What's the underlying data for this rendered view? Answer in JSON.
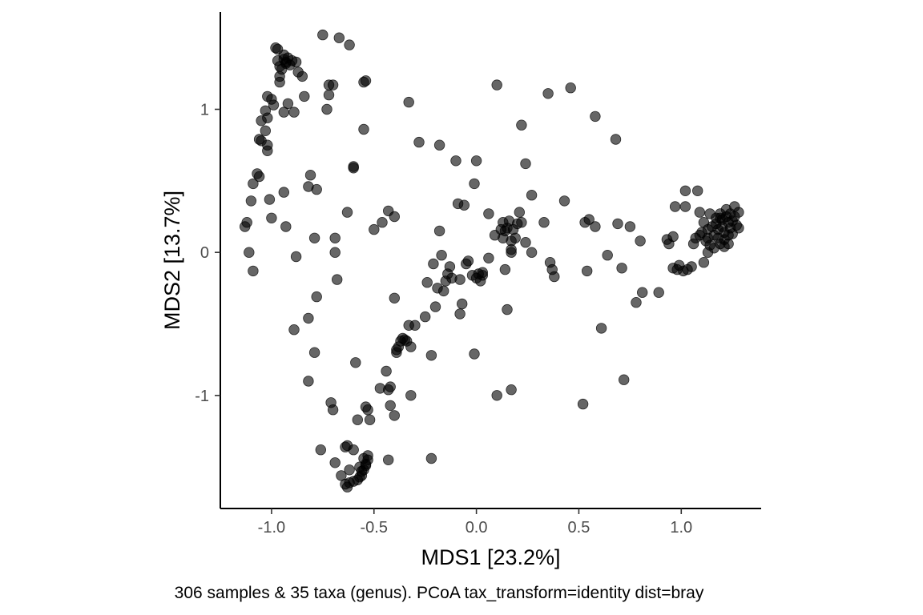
{
  "chart_data": {
    "type": "scatter",
    "title": "",
    "xlabel": "MDS1 [23.2%]",
    "ylabel": "MDS2 [13.7%]",
    "caption": "306 samples & 35 taxa (genus). PCoA tax_transform=identity dist=bray",
    "xlim": [
      -1.25,
      1.39
    ],
    "ylim": [
      -1.79,
      1.68
    ],
    "x_ticks": [
      -1.0,
      -0.5,
      0.0,
      0.5,
      1.0
    ],
    "x_tick_labels": [
      "-1.0",
      "-0.5",
      "0.0",
      "0.5",
      "1.0"
    ],
    "y_ticks": [
      -1,
      0,
      1
    ],
    "y_tick_labels": [
      "-1",
      "0",
      "1"
    ],
    "grid": false,
    "legend": "none",
    "point_color": "#000000",
    "point_opacity": 0.6,
    "series": [
      {
        "name": "samples",
        "points": [
          [
            -1.13,
            0.18
          ],
          [
            -1.12,
            0.21
          ],
          [
            -1.11,
            0.0
          ],
          [
            -1.09,
            -0.13
          ],
          [
            -1.1,
            0.36
          ],
          [
            -1.09,
            0.48
          ],
          [
            -1.07,
            0.55
          ],
          [
            -1.06,
            0.53
          ],
          [
            -1.06,
            0.79
          ],
          [
            -1.05,
            0.78
          ],
          [
            -1.05,
            0.92
          ],
          [
            -1.03,
            0.99
          ],
          [
            -1.02,
            0.94
          ],
          [
            -1.03,
            0.85
          ],
          [
            -1.02,
            0.75
          ],
          [
            -1.02,
            0.71
          ],
          [
            -1.02,
            1.09
          ],
          [
            -1.0,
            1.07
          ],
          [
            -0.99,
            1.03
          ],
          [
            -1.01,
            0.37
          ],
          [
            -1.0,
            0.24
          ],
          [
            -0.98,
            1.43
          ],
          [
            -0.97,
            1.42
          ],
          [
            -0.97,
            1.34
          ],
          [
            -0.96,
            1.3
          ],
          [
            -0.95,
            1.28
          ],
          [
            -0.96,
            1.23
          ],
          [
            -0.96,
            1.19
          ],
          [
            -0.94,
            1.38
          ],
          [
            -0.94,
            1.35
          ],
          [
            -0.93,
            1.33
          ],
          [
            -0.93,
            1.32
          ],
          [
            -0.92,
            1.36
          ],
          [
            -0.91,
            1.31
          ],
          [
            -0.9,
            1.34
          ],
          [
            -0.88,
            1.33
          ],
          [
            -0.87,
            1.26
          ],
          [
            -0.85,
            1.23
          ],
          [
            -0.92,
            1.04
          ],
          [
            -0.94,
            0.98
          ],
          [
            -0.89,
            0.98
          ],
          [
            -0.84,
            1.09
          ],
          [
            -0.94,
            0.42
          ],
          [
            -0.93,
            0.18
          ],
          [
            -0.81,
            0.54
          ],
          [
            -0.82,
            0.46
          ],
          [
            -0.78,
            0.44
          ],
          [
            -0.88,
            -0.03
          ],
          [
            -0.79,
            0.1
          ],
          [
            -0.78,
            -0.31
          ],
          [
            -0.79,
            -0.7
          ],
          [
            -0.82,
            -0.46
          ],
          [
            -0.89,
            -0.54
          ],
          [
            -0.82,
            -0.9
          ],
          [
            -0.75,
            1.52
          ],
          [
            -0.76,
            -1.38
          ],
          [
            -0.72,
            1.17
          ],
          [
            -0.72,
            1.1
          ],
          [
            -0.73,
            1.0
          ],
          [
            -0.7,
            1.17
          ],
          [
            -0.67,
            1.5
          ],
          [
            -0.62,
            1.45
          ],
          [
            -0.63,
            0.28
          ],
          [
            -0.69,
            0.1
          ],
          [
            -0.69,
            0.0
          ],
          [
            -0.68,
            -0.19
          ],
          [
            -0.71,
            -1.05
          ],
          [
            -0.7,
            -1.1
          ],
          [
            -0.69,
            -1.47
          ],
          [
            -0.64,
            -1.36
          ],
          [
            -0.63,
            -1.35
          ],
          [
            -0.6,
            -1.38
          ],
          [
            -0.66,
            -1.56
          ],
          [
            -0.64,
            -1.62
          ],
          [
            -0.63,
            -1.64
          ],
          [
            -0.62,
            -1.61
          ],
          [
            -0.6,
            -1.6
          ],
          [
            -0.58,
            -1.59
          ],
          [
            -0.57,
            -1.57
          ],
          [
            -0.56,
            -1.56
          ],
          [
            -0.56,
            -1.53
          ],
          [
            -0.55,
            -1.52
          ],
          [
            -0.54,
            -1.49
          ],
          [
            -0.55,
            -1.44
          ],
          [
            -0.53,
            -1.45
          ],
          [
            -0.53,
            -1.42
          ],
          [
            -0.54,
            -1.48
          ],
          [
            -0.57,
            -1.5
          ],
          [
            -0.58,
            -1.17
          ],
          [
            -0.62,
            -1.52
          ],
          [
            -0.6,
            0.59
          ],
          [
            -0.6,
            0.6
          ],
          [
            -0.59,
            -0.77
          ],
          [
            -0.55,
            1.19
          ],
          [
            -0.54,
            1.2
          ],
          [
            -0.55,
            0.86
          ],
          [
            -0.54,
            -1.08
          ],
          [
            -0.53,
            -1.1
          ],
          [
            -0.52,
            -1.17
          ],
          [
            -0.5,
            0.16
          ],
          [
            -0.46,
            0.21
          ],
          [
            -0.47,
            -0.95
          ],
          [
            -0.44,
            -0.83
          ],
          [
            -0.43,
            -0.96
          ],
          [
            -0.42,
            -0.94
          ],
          [
            -0.43,
            -1.45
          ],
          [
            -0.42,
            -1.07
          ],
          [
            -0.4,
            -1.14
          ],
          [
            -0.43,
            0.29
          ],
          [
            -0.4,
            0.25
          ],
          [
            -0.39,
            -0.7
          ],
          [
            -0.39,
            -0.68
          ],
          [
            -0.38,
            -0.66
          ],
          [
            -0.37,
            -0.62
          ],
          [
            -0.35,
            -0.61
          ],
          [
            -0.33,
            1.05
          ],
          [
            -0.33,
            -0.51
          ],
          [
            -0.32,
            -1.0
          ],
          [
            -0.32,
            -0.66
          ],
          [
            -0.3,
            -0.51
          ],
          [
            -0.4,
            -0.32
          ],
          [
            -0.36,
            -0.6
          ],
          [
            -0.34,
            -0.62
          ],
          [
            -0.28,
            0.77
          ],
          [
            -0.25,
            -0.45
          ],
          [
            -0.24,
            -0.21
          ],
          [
            -0.22,
            -0.72
          ],
          [
            -0.22,
            -1.44
          ],
          [
            -0.21,
            -0.08
          ],
          [
            -0.2,
            -0.38
          ],
          [
            -0.19,
            -0.25
          ],
          [
            -0.18,
            0.75
          ],
          [
            -0.18,
            0.15
          ],
          [
            -0.17,
            -0.02
          ],
          [
            -0.16,
            -0.27
          ],
          [
            -0.15,
            -0.2
          ],
          [
            -0.14,
            -0.15
          ],
          [
            -0.13,
            -0.1
          ],
          [
            -0.12,
            -0.18
          ],
          [
            -0.1,
            0.64
          ],
          [
            -0.09,
            0.34
          ],
          [
            -0.08,
            -0.43
          ],
          [
            -0.08,
            -0.19
          ],
          [
            -0.07,
            -0.36
          ],
          [
            -0.06,
            0.33
          ],
          [
            -0.05,
            -0.08
          ],
          [
            -0.04,
            -0.06
          ],
          [
            -0.02,
            -0.16
          ],
          [
            -0.01,
            0.48
          ],
          [
            -0.01,
            -0.71
          ],
          [
            0.0,
            0.64
          ],
          [
            0.0,
            -0.18
          ],
          [
            0.01,
            -0.15
          ],
          [
            0.02,
            -0.2
          ],
          [
            0.03,
            -0.16
          ],
          [
            0.03,
            -0.14
          ],
          [
            0.06,
            0.27
          ],
          [
            0.06,
            -0.04
          ],
          [
            0.09,
            0.12
          ],
          [
            0.1,
            1.17
          ],
          [
            0.1,
            -1.0
          ],
          [
            0.12,
            0.16
          ],
          [
            0.13,
            0.1
          ],
          [
            0.13,
            0.21
          ],
          [
            0.14,
            0.15
          ],
          [
            0.15,
            0.17
          ],
          [
            0.14,
            -0.12
          ],
          [
            0.15,
            -0.4
          ],
          [
            0.16,
            0.22
          ],
          [
            0.17,
            0.02
          ],
          [
            0.17,
            0.0
          ],
          [
            0.17,
            -0.96
          ],
          [
            0.17,
            0.08
          ],
          [
            0.18,
            0.16
          ],
          [
            0.19,
            0.1
          ],
          [
            0.2,
            0.2
          ],
          [
            0.21,
            0.28
          ],
          [
            0.22,
            0.89
          ],
          [
            0.22,
            0.21
          ],
          [
            0.24,
            0.62
          ],
          [
            0.24,
            0.07
          ],
          [
            0.27,
            0.4
          ],
          [
            0.27,
            0.0
          ],
          [
            0.33,
            0.21
          ],
          [
            0.35,
            1.11
          ],
          [
            0.36,
            -0.07
          ],
          [
            0.37,
            -0.12
          ],
          [
            0.38,
            -0.17
          ],
          [
            0.43,
            0.36
          ],
          [
            0.46,
            1.15
          ],
          [
            0.52,
            -1.06
          ],
          [
            0.53,
            0.21
          ],
          [
            0.54,
            -0.13
          ],
          [
            0.55,
            0.23
          ],
          [
            0.58,
            0.18
          ],
          [
            0.58,
            0.95
          ],
          [
            0.61,
            -0.53
          ],
          [
            0.64,
            -0.02
          ],
          [
            0.68,
            0.79
          ],
          [
            0.69,
            0.2
          ],
          [
            0.71,
            -0.11
          ],
          [
            0.72,
            -0.89
          ],
          [
            0.75,
            0.18
          ],
          [
            0.78,
            -0.35
          ],
          [
            0.8,
            0.08
          ],
          [
            0.81,
            -0.28
          ],
          [
            0.89,
            -0.28
          ],
          [
            0.93,
            0.09
          ],
          [
            0.94,
            0.06
          ],
          [
            0.96,
            0.11
          ],
          [
            0.97,
            0.32
          ],
          [
            0.96,
            -0.11
          ],
          [
            0.98,
            -0.12
          ],
          [
            0.99,
            -0.09
          ],
          [
            1.01,
            -0.13
          ],
          [
            1.02,
            0.43
          ],
          [
            1.02,
            0.32
          ],
          [
            1.03,
            -0.12
          ],
          [
            1.05,
            -0.1
          ],
          [
            1.06,
            0.06
          ],
          [
            1.07,
            0.1
          ],
          [
            1.08,
            0.43
          ],
          [
            1.09,
            0.12
          ],
          [
            1.09,
            0.28
          ],
          [
            1.1,
            0.14
          ],
          [
            1.11,
            0.21
          ],
          [
            1.12,
            0.08
          ],
          [
            1.13,
            0.16
          ],
          [
            1.13,
            0.1
          ],
          [
            1.14,
            0.27
          ],
          [
            1.14,
            0.05
          ],
          [
            1.15,
            0.18
          ],
          [
            1.16,
            0.12
          ],
          [
            1.17,
            0.24
          ],
          [
            1.17,
            0.2
          ],
          [
            1.18,
            0.16
          ],
          [
            1.18,
            0.1
          ],
          [
            1.19,
            0.06
          ],
          [
            1.19,
            0.27
          ],
          [
            1.2,
            0.23
          ],
          [
            1.2,
            0.18
          ],
          [
            1.21,
            0.14
          ],
          [
            1.21,
            0.09
          ],
          [
            1.22,
            0.3
          ],
          [
            1.22,
            0.25
          ],
          [
            1.23,
            0.21
          ],
          [
            1.23,
            0.12
          ],
          [
            1.24,
            0.27
          ],
          [
            1.24,
            0.17
          ],
          [
            1.25,
            0.22
          ],
          [
            1.25,
            0.13
          ],
          [
            1.26,
            0.32
          ],
          [
            1.26,
            0.25
          ],
          [
            1.27,
            0.19
          ],
          [
            1.28,
            0.28
          ],
          [
            1.28,
            0.17
          ],
          [
            1.21,
            0.04
          ],
          [
            1.23,
            0.06
          ],
          [
            1.16,
            0.03
          ],
          [
            1.11,
            -0.07
          ],
          [
            1.13,
            0.0
          ],
          [
            1.19,
            0.24
          ]
        ]
      }
    ]
  }
}
